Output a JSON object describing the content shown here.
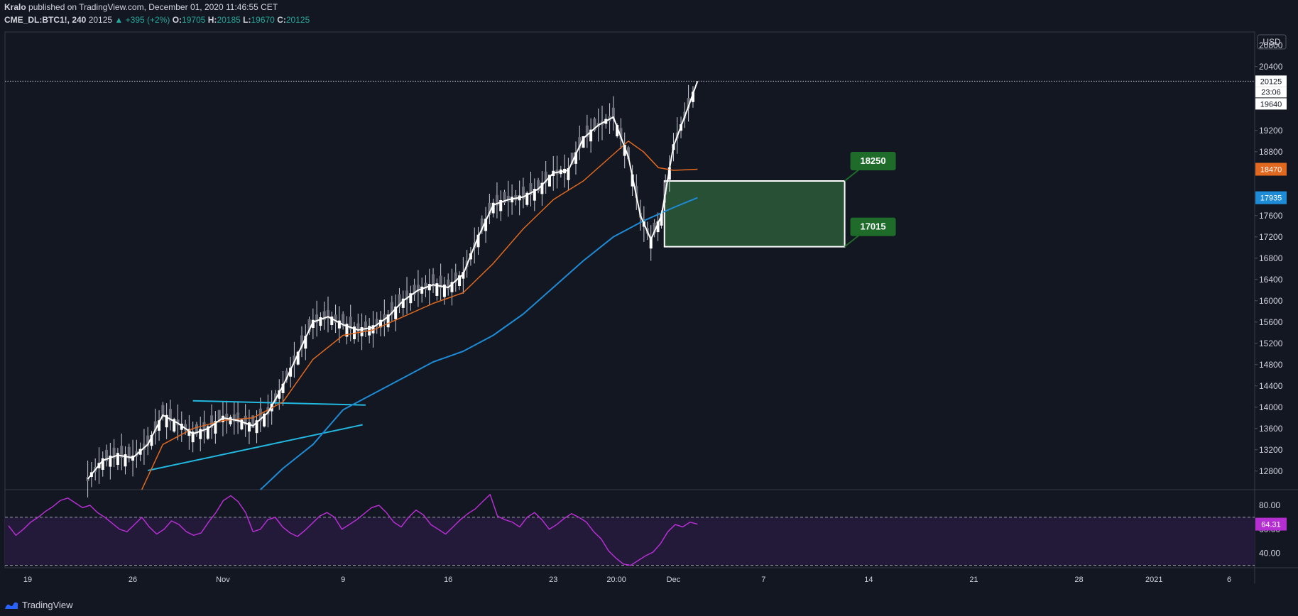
{
  "header": {
    "author": "Kralo",
    "published_text": "published on TradingView.com, December 01, 2020 11:46:55 CET",
    "symbol": "CME_DL:BTC1!, 240",
    "last": "20125",
    "change": "+395 (+2%)",
    "o_label": "O:",
    "o_value": "19705",
    "h_label": "H:",
    "h_value": "20185",
    "l_label": "L:",
    "l_value": "19670",
    "c_label": "C:",
    "c_value": "20125"
  },
  "footer": {
    "brand": "TradingView"
  },
  "colors": {
    "background": "#131722",
    "grid_line": "#363a45",
    "price_line": "#ffffff",
    "ema_orange": "#e0681f",
    "ema_blue": "#1e8bd6",
    "trendline": "#22b8e0",
    "zone_fill": "#2b5a38",
    "zone_label": "#1e6b2a",
    "rsi": "#b52ed1",
    "rsi_band": "#231a3a"
  },
  "chart_data": {
    "type": "candlestick",
    "currency": "USD",
    "price_ticks": [
      "12800",
      "13200",
      "13600",
      "14000",
      "14400",
      "14800",
      "15200",
      "15600",
      "16000",
      "16400",
      "16800",
      "17200",
      "17600",
      "18800",
      "19200",
      "20400",
      "20800"
    ],
    "price_ylim": [
      12450,
      21050
    ],
    "time_ticks": [
      {
        "label": "19",
        "t": 0
      },
      {
        "label": "26",
        "t": 7
      },
      {
        "label": "Nov",
        "t": 13
      },
      {
        "label": "9",
        "t": 21
      },
      {
        "label": "16",
        "t": 28
      },
      {
        "label": "23",
        "t": 35
      },
      {
        "label": "20:00",
        "t": 39.2
      },
      {
        "label": "Dec",
        "t": 43
      },
      {
        "label": "7",
        "t": 49
      },
      {
        "label": "14",
        "t": 56
      },
      {
        "label": "21",
        "t": 63
      },
      {
        "label": "28",
        "t": 70
      },
      {
        "label": "2021",
        "t": 75
      },
      {
        "label": "6",
        "t": 80
      }
    ],
    "series": [
      {
        "name": "Close",
        "points": [
          [
            4,
            12650
          ],
          [
            5,
            13000
          ],
          [
            6,
            13100
          ],
          [
            7,
            13050
          ],
          [
            8,
            13300
          ],
          [
            9,
            13850
          ],
          [
            10,
            13700
          ],
          [
            11,
            13500
          ],
          [
            12,
            13600
          ],
          [
            13,
            13800
          ],
          [
            14,
            13750
          ],
          [
            15,
            13650
          ],
          [
            16,
            13900
          ],
          [
            17,
            14400
          ],
          [
            18,
            15000
          ],
          [
            19,
            15600
          ],
          [
            20,
            15700
          ],
          [
            21,
            15550
          ],
          [
            22,
            15450
          ],
          [
            23,
            15500
          ],
          [
            24,
            15700
          ],
          [
            25,
            16000
          ],
          [
            26,
            16200
          ],
          [
            27,
            16300
          ],
          [
            28,
            16250
          ],
          [
            29,
            16500
          ],
          [
            30,
            17200
          ],
          [
            31,
            17800
          ],
          [
            32,
            17900
          ],
          [
            33,
            17950
          ],
          [
            34,
            18100
          ],
          [
            35,
            18400
          ],
          [
            36,
            18450
          ],
          [
            37,
            19050
          ],
          [
            38,
            19300
          ],
          [
            39,
            19450
          ],
          [
            40,
            18700
          ],
          [
            40.8,
            17600
          ],
          [
            41.5,
            17150
          ],
          [
            42.2,
            17600
          ],
          [
            43,
            18900
          ],
          [
            44,
            19650
          ],
          [
            44.6,
            20125
          ]
        ]
      },
      {
        "name": "EMA fast",
        "points": [
          [
            7.6,
            12450
          ],
          [
            9,
            13300
          ],
          [
            11,
            13600
          ],
          [
            13,
            13750
          ],
          [
            15,
            13800
          ],
          [
            17,
            14100
          ],
          [
            19,
            14900
          ],
          [
            21,
            15350
          ],
          [
            23,
            15450
          ],
          [
            25,
            15700
          ],
          [
            27,
            15950
          ],
          [
            29,
            16150
          ],
          [
            31,
            16700
          ],
          [
            33,
            17350
          ],
          [
            35,
            17900
          ],
          [
            37,
            18250
          ],
          [
            39,
            18750
          ],
          [
            40,
            19000
          ],
          [
            41,
            18800
          ],
          [
            42,
            18500
          ],
          [
            43,
            18450
          ],
          [
            44.6,
            18470
          ]
        ]
      },
      {
        "name": "EMA slow",
        "points": [
          [
            15.5,
            12450
          ],
          [
            17,
            12850
          ],
          [
            19,
            13300
          ],
          [
            21,
            13950
          ],
          [
            23,
            14250
          ],
          [
            25,
            14550
          ],
          [
            27,
            14850
          ],
          [
            29,
            15050
          ],
          [
            31,
            15350
          ],
          [
            33,
            15750
          ],
          [
            35,
            16250
          ],
          [
            37,
            16750
          ],
          [
            39,
            17200
          ],
          [
            41,
            17500
          ],
          [
            43,
            17750
          ],
          [
            44.6,
            17935
          ]
        ]
      }
    ],
    "trendlines": [
      {
        "from": [
          11,
          14120
        ],
        "to": [
          22.5,
          14040
        ]
      },
      {
        "from": [
          8,
          12810
        ],
        "to": [
          22.3,
          13670
        ]
      }
    ],
    "zone": {
      "top": 18250,
      "bottom": 17015,
      "from_t": 42.4,
      "to_t": 54.4,
      "label_top": "18250",
      "label_bottom": "17015"
    },
    "current_price": {
      "value": "20125",
      "countdown": "23:06",
      "secondary": "19640"
    },
    "price_badges": [
      {
        "value": "18470",
        "color": "#e0681f"
      },
      {
        "value": "17935",
        "color": "#1e8bd6"
      }
    ],
    "rsi": {
      "ticks": [
        "40.00",
        "60.00",
        "80.00"
      ],
      "value": "64.31",
      "ylim": [
        28,
        93
      ],
      "bands": [
        30,
        70
      ],
      "values": [
        63,
        55,
        60,
        66,
        70,
        75,
        79,
        84,
        86,
        82,
        78,
        80,
        74,
        70,
        65,
        60,
        58,
        64,
        70,
        62,
        56,
        60,
        67,
        64,
        58,
        55,
        57,
        66,
        74,
        84,
        88,
        83,
        74,
        58,
        60,
        68,
        70,
        62,
        57,
        54,
        59,
        65,
        71,
        74,
        70,
        60,
        64,
        68,
        73,
        78,
        80,
        74,
        66,
        62,
        70,
        76,
        72,
        64,
        60,
        56,
        62,
        68,
        73,
        77,
        83,
        89,
        71,
        68,
        66,
        62,
        70,
        74,
        68,
        60,
        64,
        69,
        73,
        70,
        66,
        58,
        52,
        42,
        36,
        31,
        30,
        34,
        38,
        41,
        48,
        58,
        64,
        62,
        66,
        64.31
      ]
    }
  }
}
